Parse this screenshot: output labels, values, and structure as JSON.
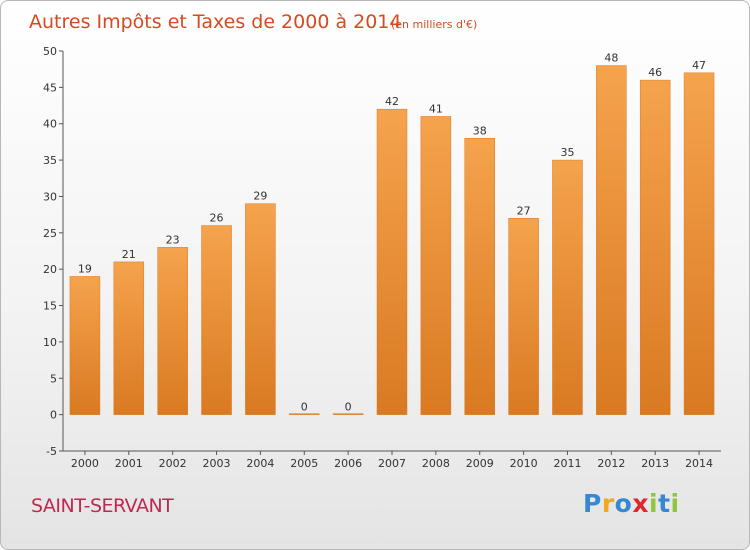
{
  "chart_data": {
    "type": "bar",
    "title": "Autres Impôts et Taxes de 2000 à 2014",
    "subtitle": "(en milliers d'€)",
    "categories": [
      "2000",
      "2001",
      "2002",
      "2003",
      "2004",
      "2005",
      "2006",
      "2007",
      "2008",
      "2009",
      "2010",
      "2011",
      "2012",
      "2013",
      "2014"
    ],
    "values": [
      19,
      21,
      23,
      26,
      29,
      0,
      0,
      42,
      41,
      38,
      27,
      35,
      48,
      46,
      47
    ],
    "ylim": [
      -5,
      50
    ],
    "yticks": [
      -5,
      0,
      5,
      10,
      15,
      20,
      25,
      30,
      35,
      40,
      45,
      50
    ],
    "grid": false,
    "bar_color_light": "#f5a34d",
    "bar_color_dark": "#d97a22"
  },
  "footer": {
    "commune": "SAINT-SERVANT",
    "logo_letters": [
      "P",
      "r",
      "o",
      "x",
      "i",
      "t",
      "i"
    ],
    "logo_colors": [
      "#3a87d1",
      "#f0a91e",
      "#3a87d1",
      "#e0262b",
      "#8ec63f",
      "#3a87d1",
      "#8ec63f"
    ]
  }
}
